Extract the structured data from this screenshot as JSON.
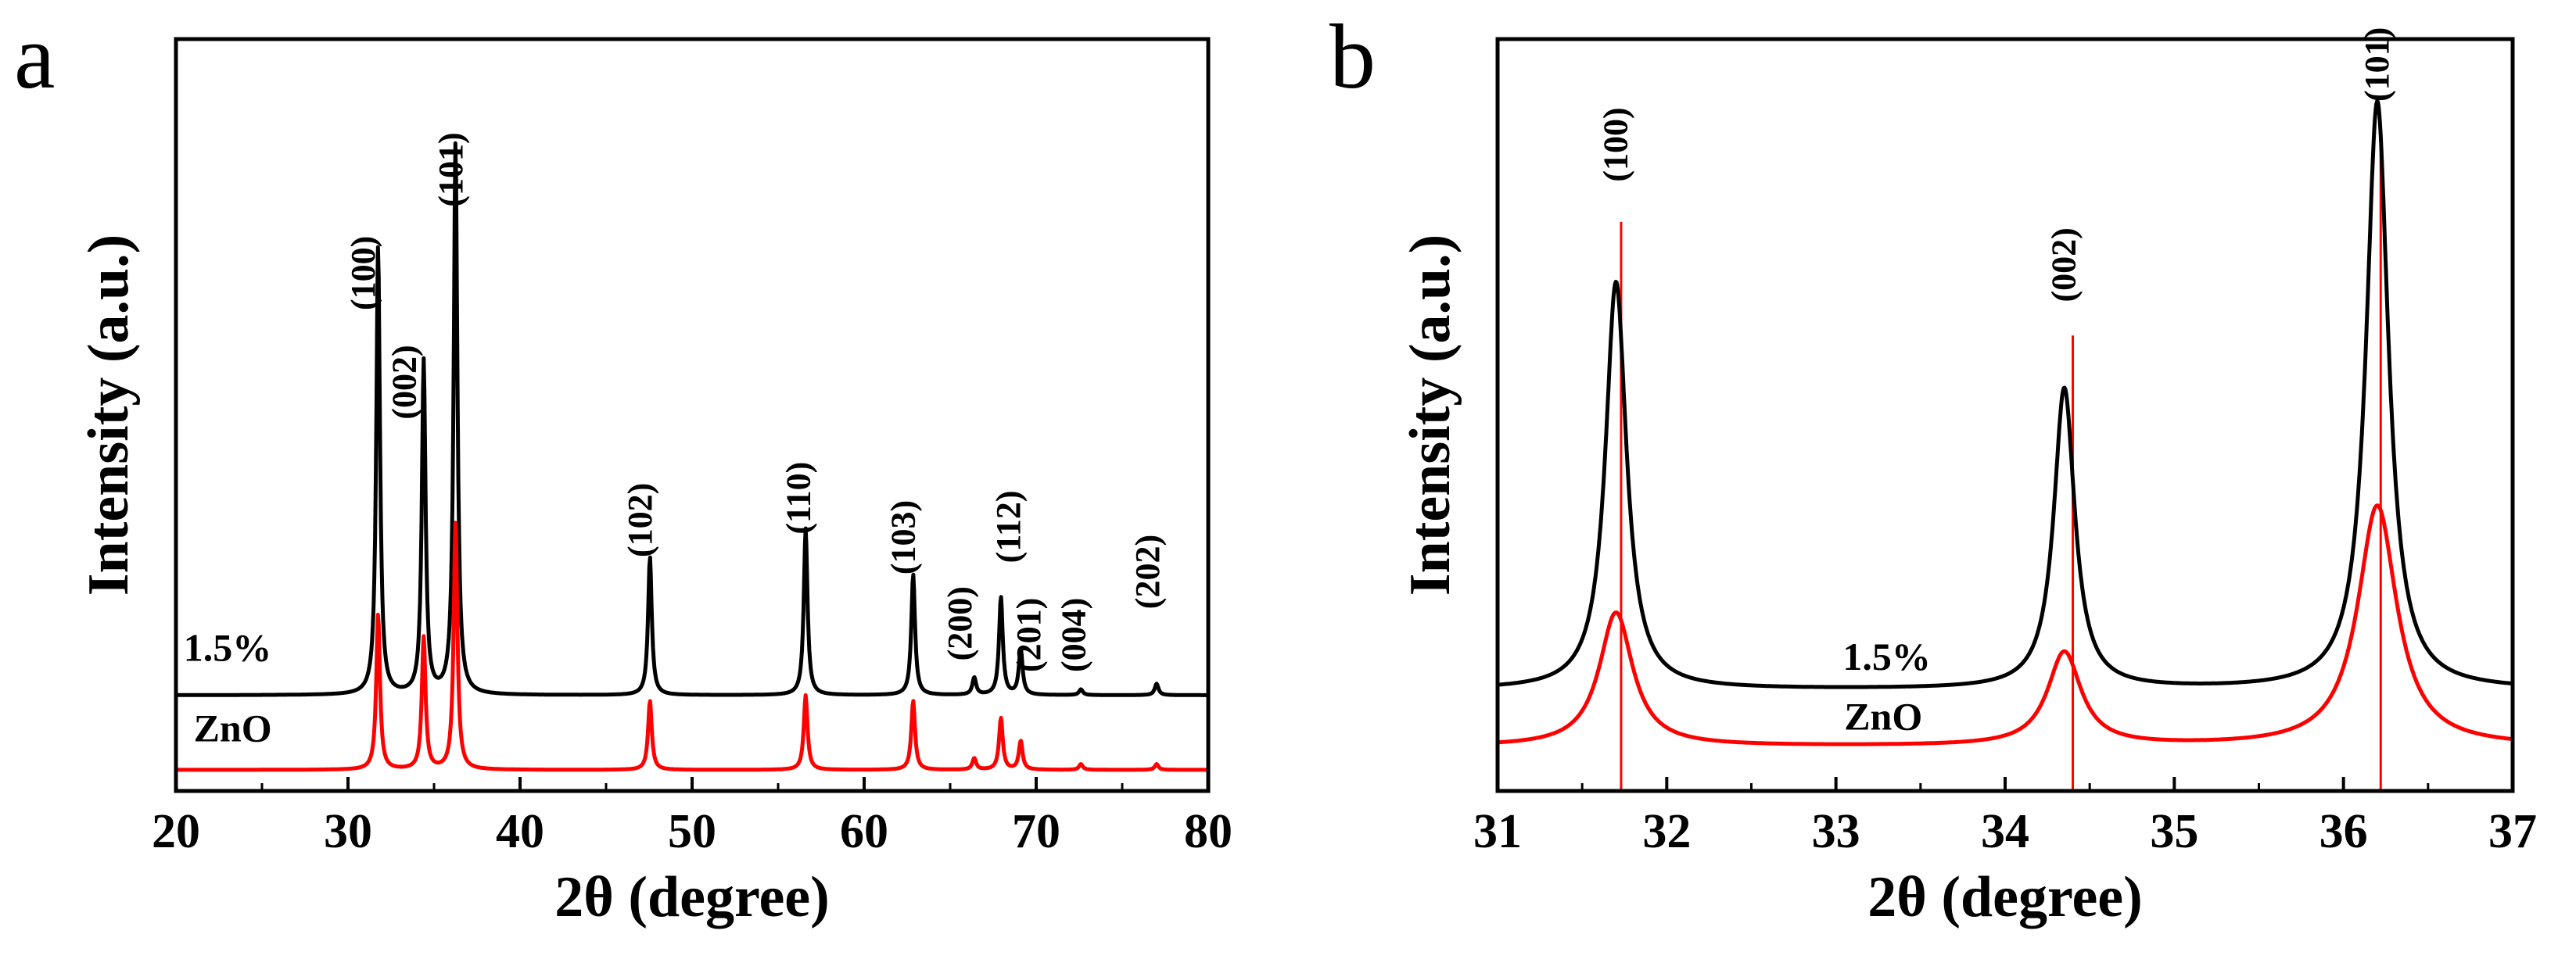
{
  "chart_data": [
    {
      "type": "line",
      "panel_label": "a",
      "title": "",
      "xlabel": "2θ (degree)",
      "ylabel": "Intensity (a.u.)",
      "xlim": [
        20,
        80
      ],
      "xticks": [
        20,
        30,
        40,
        50,
        60,
        70,
        80
      ],
      "ylim": [
        0,
        1
      ],
      "grid": false,
      "series": [
        {
          "name": "1.5%",
          "color": "#000000",
          "baseline": 0.13,
          "peaks": [
            {
              "x": 31.75,
              "y": 0.78,
              "w": 0.13
            },
            {
              "x": 34.4,
              "y": 0.58,
              "w": 0.13
            },
            {
              "x": 36.25,
              "y": 0.96,
              "w": 0.13
            },
            {
              "x": 47.55,
              "y": 0.24,
              "w": 0.13
            },
            {
              "x": 56.6,
              "y": 0.29,
              "w": 0.13
            },
            {
              "x": 62.85,
              "y": 0.21,
              "w": 0.13
            },
            {
              "x": 66.4,
              "y": 0.03,
              "w": 0.13
            },
            {
              "x": 67.95,
              "y": 0.17,
              "w": 0.13
            },
            {
              "x": 69.1,
              "y": 0.08,
              "w": 0.13
            },
            {
              "x": 72.6,
              "y": 0.01,
              "w": 0.13
            },
            {
              "x": 77.0,
              "y": 0.02,
              "w": 0.13
            }
          ]
        },
        {
          "name": "ZnO",
          "color": "#ff0000",
          "baseline": 0.0,
          "peaks": [
            {
              "x": 31.75,
              "y": 0.27,
              "w": 0.13
            },
            {
              "x": 34.4,
              "y": 0.23,
              "w": 0.13
            },
            {
              "x": 36.25,
              "y": 0.43,
              "w": 0.13
            },
            {
              "x": 47.55,
              "y": 0.12,
              "w": 0.13
            },
            {
              "x": 56.6,
              "y": 0.13,
              "w": 0.13
            },
            {
              "x": 62.85,
              "y": 0.12,
              "w": 0.13
            },
            {
              "x": 66.4,
              "y": 0.02,
              "w": 0.13
            },
            {
              "x": 67.95,
              "y": 0.09,
              "w": 0.13
            },
            {
              "x": 69.1,
              "y": 0.05,
              "w": 0.13
            },
            {
              "x": 72.6,
              "y": 0.01,
              "w": 0.13
            },
            {
              "x": 77.0,
              "y": 0.01,
              "w": 0.13
            }
          ]
        }
      ],
      "annotations": [
        {
          "text": "(100)",
          "x": 30.9,
          "y": 0.8
        },
        {
          "text": "(002)",
          "x": 33.3,
          "y": 0.61
        },
        {
          "text": "(101)",
          "x": 36.0,
          "y": 0.98
        },
        {
          "text": "(102)",
          "x": 47.0,
          "y": 0.37
        },
        {
          "text": "(110)",
          "x": 56.2,
          "y": 0.41
        },
        {
          "text": "(103)",
          "x": 62.3,
          "y": 0.34
        },
        {
          "text": "(200)",
          "x": 65.6,
          "y": 0.19
        },
        {
          "text": "(112)",
          "x": 68.4,
          "y": 0.36
        },
        {
          "text": "(201)",
          "x": 69.6,
          "y": 0.17
        },
        {
          "text": "(004)",
          "x": 72.2,
          "y": 0.17
        },
        {
          "text": "(202)",
          "x": 76.5,
          "y": 0.28
        }
      ],
      "series_labels": [
        {
          "text": "1.5%",
          "x": 23.0,
          "y": 0.19
        },
        {
          "text": "ZnO",
          "x": 23.3,
          "y": 0.05
        }
      ]
    },
    {
      "type": "line",
      "panel_label": "b",
      "title": "",
      "xlabel": "2θ (degree)",
      "ylabel": "Intensity (a.u.)",
      "xlim": [
        31,
        37
      ],
      "xticks": [
        31,
        32,
        33,
        34,
        35,
        36,
        37
      ],
      "ylim": [
        0,
        1
      ],
      "grid": false,
      "series": [
        {
          "name": "1.5%",
          "color": "#000000",
          "baseline": 0.12,
          "peaks": [
            {
              "x": 31.7,
              "y": 0.61,
              "w": 0.075
            },
            {
              "x": 34.35,
              "y": 0.45,
              "w": 0.075
            },
            {
              "x": 36.2,
              "y": 0.88,
              "w": 0.08
            }
          ]
        },
        {
          "name": "ZnO",
          "color": "#ff0000",
          "baseline": 0.035,
          "peaks": [
            {
              "x": 31.7,
              "y": 0.2,
              "w": 0.12
            },
            {
              "x": 34.35,
              "y": 0.14,
              "w": 0.12
            },
            {
              "x": 36.2,
              "y": 0.36,
              "w": 0.14
            }
          ]
        }
      ],
      "reference_lines": [
        {
          "x": 31.73,
          "top": 0.82,
          "color": "#ff0000"
        },
        {
          "x": 34.4,
          "top": 0.65,
          "color": "#ff0000"
        },
        {
          "x": 36.22,
          "top": 0.96,
          "color": "#ff0000"
        }
      ],
      "annotations": [
        {
          "text": "(100)",
          "x": 31.7,
          "y": 0.88
        },
        {
          "text": "(002)",
          "x": 34.35,
          "y": 0.7
        },
        {
          "text": "(101)",
          "x": 36.2,
          "y": 1.0
        }
      ],
      "series_labels": [
        {
          "text": "1.5%",
          "x": 33.3,
          "y": 0.15
        },
        {
          "text": "ZnO",
          "x": 33.28,
          "y": 0.06
        }
      ]
    }
  ]
}
